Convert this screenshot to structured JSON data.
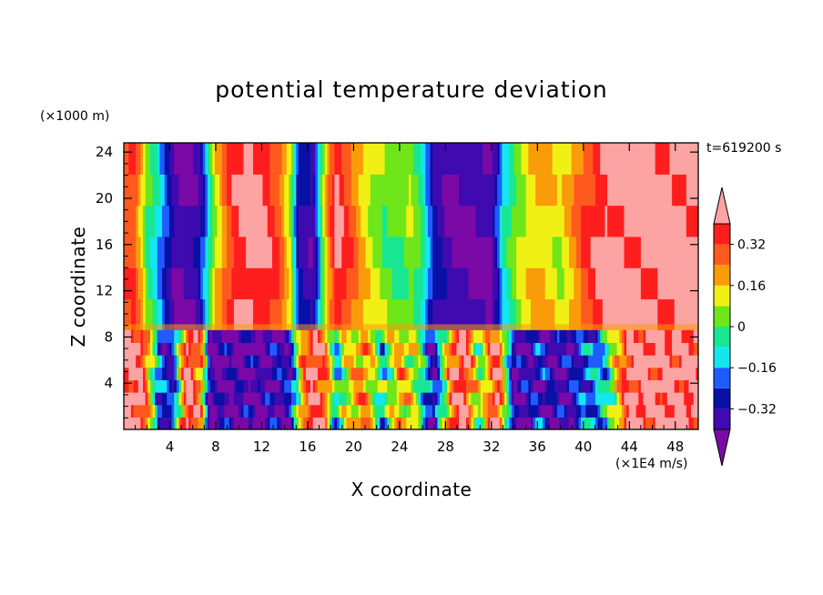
{
  "chart_data": {
    "type": "contour",
    "title": "potential temperature deviation",
    "xlabel": "X coordinate",
    "ylabel": "Z coordinate",
    "x_units": "(×1E4 m/s)",
    "y_units": "(×1000 m)",
    "time_label": "t=619200 s",
    "xlim": [
      0,
      50
    ],
    "ylim": [
      0,
      24.8
    ],
    "x_ticks": [
      4,
      8,
      12,
      16,
      20,
      24,
      28,
      32,
      36,
      40,
      44,
      48
    ],
    "x_tick_labels": [
      "4",
      "8",
      "12",
      "16",
      "20",
      "24",
      "28",
      "32",
      "36",
      "40",
      "44",
      "48"
    ],
    "y_ticks": [
      4,
      8,
      12,
      16,
      20,
      24
    ],
    "y_tick_labels": [
      "4",
      "8",
      "12",
      "16",
      "20",
      "24"
    ],
    "colorbar": {
      "levels": [
        -0.4,
        -0.32,
        -0.24,
        -0.16,
        -0.08,
        0,
        0.08,
        0.16,
        0.24,
        0.32,
        0.4
      ],
      "tick_values": [
        0.32,
        0.16,
        0,
        -0.16,
        -0.32
      ],
      "tick_labels": [
        "0.32",
        "0.16",
        "0",
        "−0.16",
        "−0.32"
      ],
      "colors": [
        "#7a09a6",
        "#3f0ab0",
        "#0a10a6",
        "#1e5cff",
        "#14e6f0",
        "#19e691",
        "#6ee619",
        "#f0f014",
        "#fa9b0a",
        "#ff5a1e",
        "#ff1e1e",
        "#fca3a3"
      ]
    },
    "upper_columns": [
      {
        "x": 0.0,
        "v": 0.28
      },
      {
        "x": 1.0,
        "v": 0.3
      },
      {
        "x": 2.0,
        "v": 0.02
      },
      {
        "x": 3.0,
        "v": -0.12
      },
      {
        "x": 4.5,
        "v": -0.4
      },
      {
        "x": 6.5,
        "v": -0.36
      },
      {
        "x": 8.0,
        "v": 0.12
      },
      {
        "x": 9.5,
        "v": 0.36
      },
      {
        "x": 11.0,
        "v": 0.44
      },
      {
        "x": 12.0,
        "v": 0.42
      },
      {
        "x": 13.5,
        "v": 0.3
      },
      {
        "x": 14.5,
        "v": 0.08
      },
      {
        "x": 15.2,
        "v": -0.3
      },
      {
        "x": 16.5,
        "v": -0.38
      },
      {
        "x": 17.5,
        "v": 0.12
      },
      {
        "x": 18.5,
        "v": 0.42
      },
      {
        "x": 20.0,
        "v": 0.26
      },
      {
        "x": 21.0,
        "v": 0.14
      },
      {
        "x": 22.5,
        "v": 0.04
      },
      {
        "x": 24.0,
        "v": 0.0
      },
      {
        "x": 25.0,
        "v": 0.06
      },
      {
        "x": 26.0,
        "v": -0.06
      },
      {
        "x": 27.0,
        "v": -0.3
      },
      {
        "x": 28.5,
        "v": -0.4
      },
      {
        "x": 32.0,
        "v": -0.4
      },
      {
        "x": 33.0,
        "v": -0.1
      },
      {
        "x": 34.5,
        "v": 0.08
      },
      {
        "x": 36.0,
        "v": 0.18
      },
      {
        "x": 38.0,
        "v": 0.1
      },
      {
        "x": 40.0,
        "v": 0.3
      },
      {
        "x": 42.0,
        "v": 0.44
      },
      {
        "x": 45.0,
        "v": 0.44
      },
      {
        "x": 50.0,
        "v": 0.44
      }
    ],
    "lower_columns": [
      {
        "x": 0.0,
        "v": 0.44
      },
      {
        "x": 1.5,
        "v": 0.44
      },
      {
        "x": 3.0,
        "v": -0.2
      },
      {
        "x": 4.2,
        "v": -0.32
      },
      {
        "x": 5.5,
        "v": 0.44
      },
      {
        "x": 6.8,
        "v": 0.2
      },
      {
        "x": 7.5,
        "v": -0.4
      },
      {
        "x": 12.0,
        "v": -0.4
      },
      {
        "x": 14.5,
        "v": -0.3
      },
      {
        "x": 15.5,
        "v": 0.2
      },
      {
        "x": 16.5,
        "v": 0.44
      },
      {
        "x": 17.5,
        "v": 0.3
      },
      {
        "x": 18.5,
        "v": -0.12
      },
      {
        "x": 19.5,
        "v": 0.12
      },
      {
        "x": 21.0,
        "v": 0.24
      },
      {
        "x": 22.5,
        "v": -0.1
      },
      {
        "x": 24.0,
        "v": 0.2
      },
      {
        "x": 25.5,
        "v": 0.06
      },
      {
        "x": 27.0,
        "v": -0.36
      },
      {
        "x": 28.5,
        "v": 0.3
      },
      {
        "x": 29.5,
        "v": 0.44
      },
      {
        "x": 31.0,
        "v": 0.0
      },
      {
        "x": 32.5,
        "v": 0.44
      },
      {
        "x": 34.0,
        "v": -0.4
      },
      {
        "x": 36.0,
        "v": -0.3
      },
      {
        "x": 38.0,
        "v": -0.38
      },
      {
        "x": 40.0,
        "v": -0.24
      },
      {
        "x": 42.0,
        "v": -0.1
      },
      {
        "x": 44.0,
        "v": 0.44
      },
      {
        "x": 48.0,
        "v": 0.44
      },
      {
        "x": 50.0,
        "v": 0.44
      }
    ]
  }
}
